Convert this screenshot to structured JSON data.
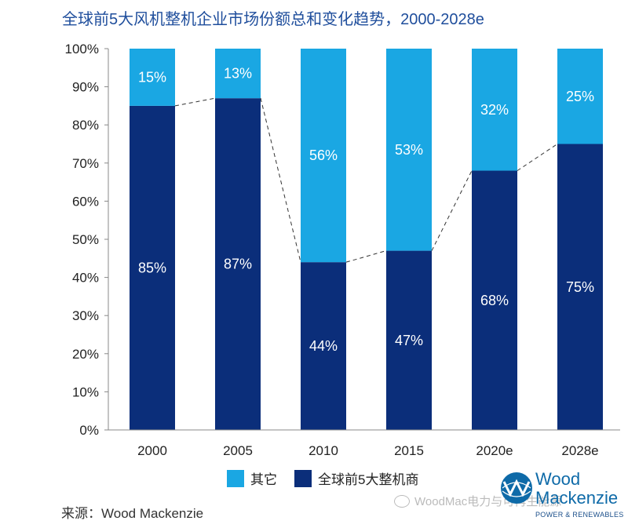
{
  "title": "全球前5大风机整机企业市场份额总和变化趋势，2000-2028e",
  "source": "来源：Wood Mackenzie",
  "watermark": "WoodMac电力与可再生能源",
  "brand": {
    "line1": "Wood",
    "line2": "Mackenzie",
    "sub": "POWER & RENEWABLES"
  },
  "colors": {
    "top5": "#0b2e7a",
    "other": "#1aa7e3",
    "title": "#1f4e9c",
    "dash": "#333333"
  },
  "chart_data": {
    "type": "bar",
    "stacked": true,
    "categories": [
      "2000",
      "2005",
      "2010",
      "2015",
      "2020e",
      "2028e"
    ],
    "series": [
      {
        "name": "全球前5大整机商",
        "values": [
          85,
          87,
          44,
          47,
          68,
          75
        ],
        "labels": [
          "85%",
          "87%",
          "44%",
          "47%",
          "68%",
          "75%"
        ]
      },
      {
        "name": "其它",
        "values": [
          15,
          13,
          56,
          53,
          32,
          25
        ],
        "labels": [
          "15%",
          "13%",
          "56%",
          "53%",
          "32%",
          "25%"
        ]
      }
    ],
    "ylim": [
      0,
      100
    ],
    "yticks": [
      "0%",
      "10%",
      "20%",
      "30%",
      "40%",
      "50%",
      "60%",
      "70%",
      "80%",
      "90%",
      "100%"
    ],
    "trend_line": "dashed line connecting tops of 全球前5大整机商",
    "legend": {
      "position": "bottom-center"
    },
    "grid": false
  }
}
